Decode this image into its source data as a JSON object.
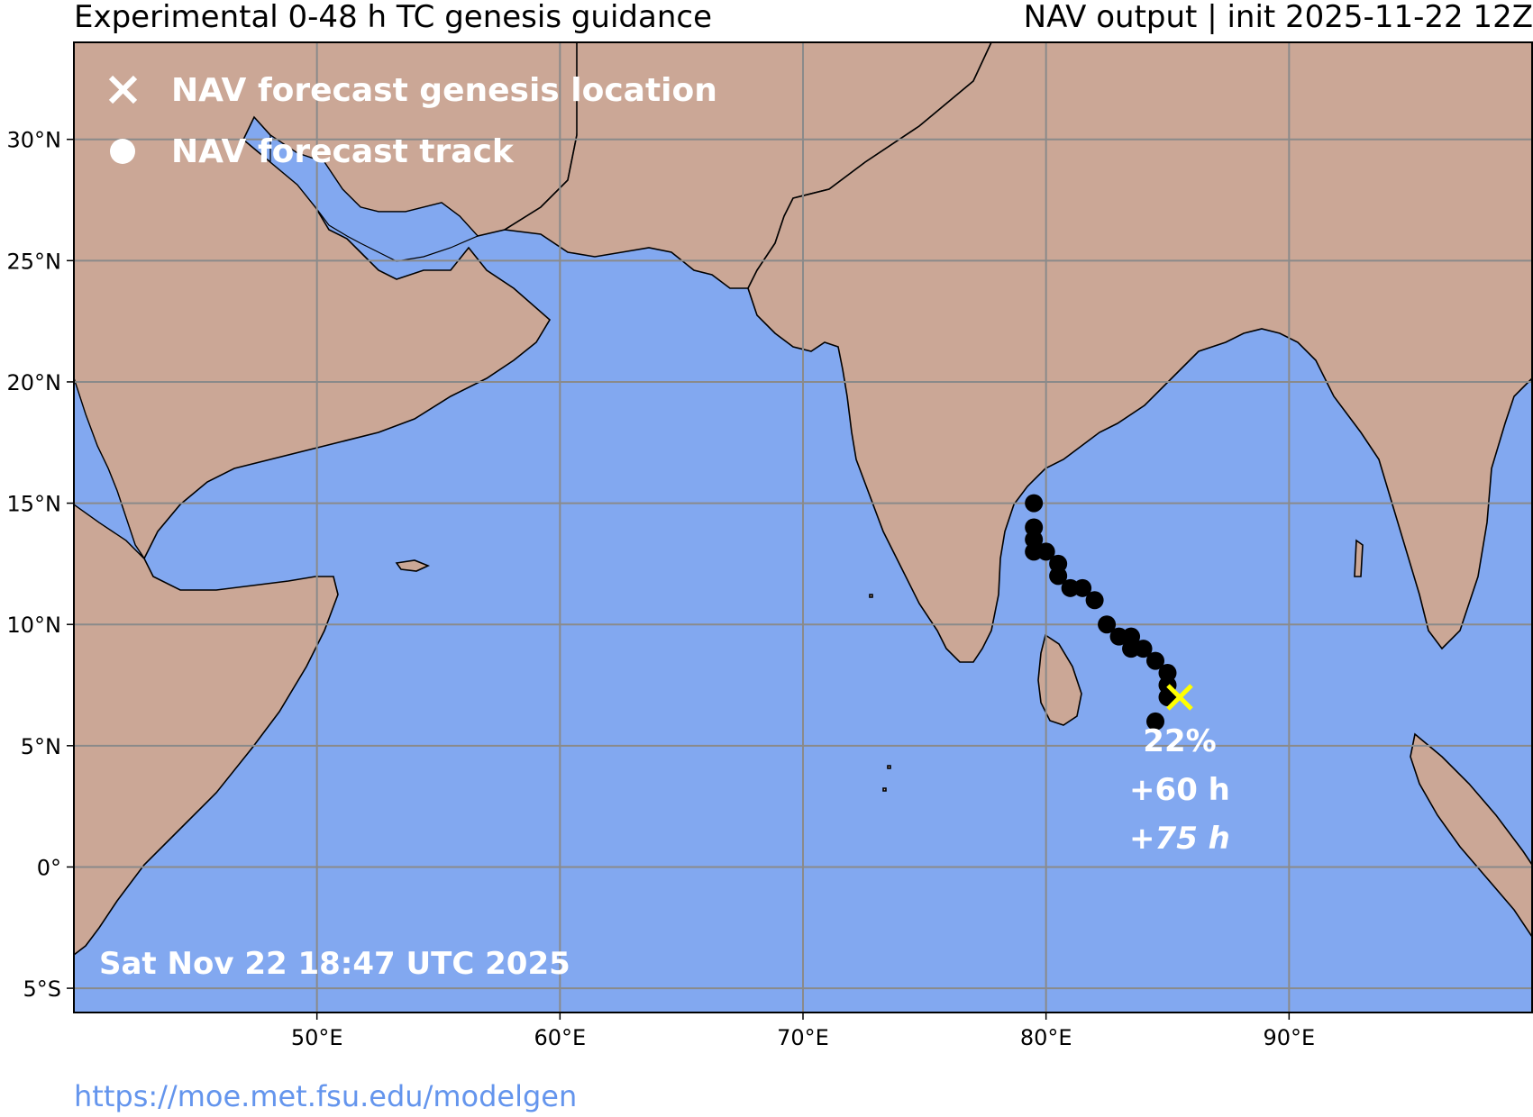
{
  "header": {
    "title_left": "Experimental 0-48 h TC genesis guidance",
    "title_right": "NAV output | init 2025-11-22 12Z"
  },
  "legend": {
    "genesis_label": "NAV forecast genesis location",
    "track_label": "NAV forecast track"
  },
  "map": {
    "ocean_color": "#82a8f0",
    "land_color": "#cba796",
    "grid_color": "#8a8a8a",
    "extent": {
      "lon": [
        40,
        100
      ],
      "lat": [
        -6,
        34
      ]
    },
    "lon_ticks": [
      {
        "value": 50,
        "label": "50°E"
      },
      {
        "value": 60,
        "label": "60°E"
      },
      {
        "value": 70,
        "label": "70°E"
      },
      {
        "value": 80,
        "label": "80°E"
      },
      {
        "value": 90,
        "label": "90°E"
      }
    ],
    "lat_ticks": [
      {
        "value": 30,
        "label": "30°N"
      },
      {
        "value": 25,
        "label": "25°N"
      },
      {
        "value": 20,
        "label": "20°N"
      },
      {
        "value": 15,
        "label": "15°N"
      },
      {
        "value": 10,
        "label": "10°N"
      },
      {
        "value": 5,
        "label": "5°N"
      },
      {
        "value": 0,
        "label": "0°"
      },
      {
        "value": -5,
        "label": "5°S"
      }
    ]
  },
  "forecast": {
    "genesis": {
      "lon": 85.5,
      "lat": 7.0,
      "color": "#ffff00"
    },
    "probability": "22%",
    "lead_time": "+60 h",
    "lead_time_2": "+75 h",
    "track": [
      {
        "lon": 79.5,
        "lat": 15.0
      },
      {
        "lon": 79.5,
        "lat": 14.0
      },
      {
        "lon": 79.5,
        "lat": 13.5
      },
      {
        "lon": 79.5,
        "lat": 13.0
      },
      {
        "lon": 80.0,
        "lat": 13.0
      },
      {
        "lon": 80.5,
        "lat": 12.5
      },
      {
        "lon": 80.5,
        "lat": 12.0
      },
      {
        "lon": 81.0,
        "lat": 11.5
      },
      {
        "lon": 81.5,
        "lat": 11.5
      },
      {
        "lon": 82.0,
        "lat": 11.0
      },
      {
        "lon": 82.5,
        "lat": 10.0
      },
      {
        "lon": 83.0,
        "lat": 9.5
      },
      {
        "lon": 83.5,
        "lat": 9.5
      },
      {
        "lon": 83.5,
        "lat": 9.0
      },
      {
        "lon": 84.0,
        "lat": 9.0
      },
      {
        "lon": 84.5,
        "lat": 8.5
      },
      {
        "lon": 85.0,
        "lat": 8.0
      },
      {
        "lon": 85.0,
        "lat": 7.5
      },
      {
        "lon": 85.0,
        "lat": 7.0
      },
      {
        "lon": 84.5,
        "lat": 6.0
      }
    ]
  },
  "timestamp": "Sat Nov 22 18:47 UTC 2025",
  "footer": {
    "url": "https://moe.met.fsu.edu/modelgen"
  }
}
